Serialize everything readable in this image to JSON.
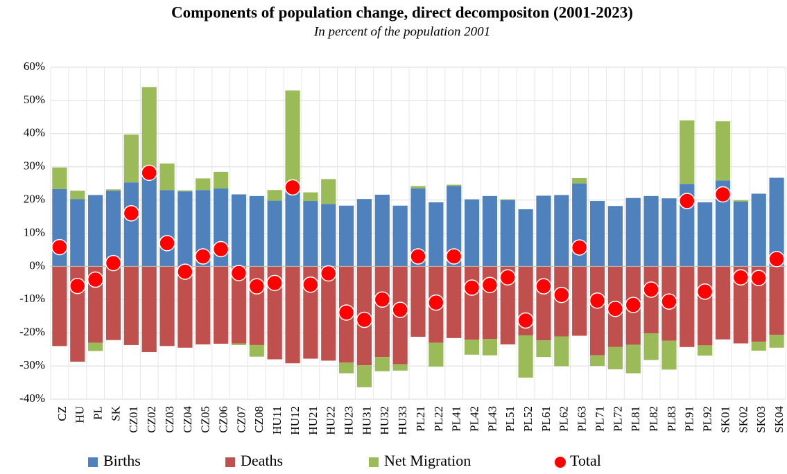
{
  "chart_data": {
    "type": "bar",
    "title": "Components of population change, direct decompositon  (2001-2023)",
    "subtitle": "In percent of the population 2001",
    "categories": [
      "CZ",
      "HU",
      "PL",
      "SK",
      "CZ01",
      "CZ02",
      "CZ03",
      "CZ04",
      "CZ05",
      "CZ06",
      "CZ07",
      "CZ08",
      "HU11",
      "HU12",
      "HU21",
      "HU22",
      "HU23",
      "HU31",
      "HU32",
      "HU33",
      "PL21",
      "PL22",
      "PL41",
      "PL42",
      "PL43",
      "PL51",
      "PL52",
      "PL61",
      "PL62",
      "PL63",
      "PL71",
      "PL72",
      "PL81",
      "PL82",
      "PL83",
      "PL91",
      "PL92",
      "SK01",
      "SK02",
      "SK03",
      "SK04"
    ],
    "series": [
      {
        "name": "Births",
        "color": "#4f81bd",
        "values": [
          23.3,
          20.3,
          21.5,
          22.8,
          25.3,
          28,
          23,
          22.6,
          23,
          23.5,
          21.7,
          21.2,
          19.8,
          24,
          19.7,
          18.8,
          18.3,
          20.3,
          21.6,
          18.3,
          23.5,
          19.3,
          24.2,
          20.2,
          21.2,
          20,
          17.2,
          21.3,
          21.5,
          25,
          19.7,
          18.2,
          20.6,
          21.2,
          20.5,
          24.8,
          19.3,
          25.9,
          19.5,
          21.9,
          26.7
        ]
      },
      {
        "name": "Deaths",
        "color": "#c0504d",
        "values": [
          -24,
          -28.7,
          -23,
          -22.2,
          -23.7,
          -25.8,
          -24,
          -24.5,
          -23.5,
          -23.3,
          -23.2,
          -23.7,
          -28,
          -29.2,
          -27.8,
          -28.4,
          -29,
          -29.8,
          -27.3,
          -29.5,
          -21.2,
          -23,
          -21.6,
          -22.1,
          -21.9,
          -23.5,
          -20.8,
          -22.3,
          -21.1,
          -20.9,
          -26.8,
          -24.3,
          -23.6,
          -20.2,
          -22.4,
          -24.3,
          -23.8,
          -22,
          -23.2,
          -22.7,
          -20.6
        ]
      },
      {
        "name": "Net Migration",
        "color": "#9bbb59",
        "values": [
          6.5,
          2.5,
          -2.5,
          0.4,
          14.4,
          26,
          8,
          0.3,
          3.5,
          5,
          -0.5,
          -3.5,
          3.2,
          29,
          2.6,
          7.5,
          -3.2,
          -6.6,
          -4.3,
          -1.9,
          0.7,
          -7.2,
          0.4,
          -4.5,
          -4.9,
          0.2,
          -12.7,
          -5,
          -9,
          1.6,
          -3.2,
          -6.7,
          -8.6,
          -8,
          -8.7,
          19.2,
          -3.1,
          17.8,
          0.4,
          -2.7,
          -3.9
        ]
      },
      {
        "name": "Total",
        "color": "#ff0000",
        "values": [
          5.8,
          -5.9,
          -4,
          1,
          16,
          28.2,
          7,
          -1.6,
          3,
          5.2,
          -2,
          -6,
          -5,
          23.8,
          -5.5,
          -2.1,
          -13.9,
          -16.1,
          -10,
          -13.1,
          3,
          -10.9,
          3,
          -6.4,
          -5.6,
          -3.3,
          -16.3,
          -6,
          -8.6,
          5.7,
          -10.3,
          -12.8,
          -11.6,
          -7,
          -10.6,
          19.7,
          -7.6,
          21.7,
          -3.3,
          -3.5,
          2.2
        ]
      }
    ],
    "ylim": [
      -40,
      60
    ],
    "yticks": [
      {
        "value": -40,
        "label": "-40%"
      },
      {
        "value": -30,
        "label": "-30%"
      },
      {
        "value": -20,
        "label": "-20%"
      },
      {
        "value": -10,
        "label": "-10%"
      },
      {
        "value": 0,
        "label": "0%"
      },
      {
        "value": 10,
        "label": "10%"
      },
      {
        "value": 20,
        "label": "20%"
      },
      {
        "value": 30,
        "label": "30%"
      },
      {
        "value": 40,
        "label": "40%"
      },
      {
        "value": 50,
        "label": "50%"
      },
      {
        "value": 60,
        "label": "60%"
      }
    ],
    "grid": true
  }
}
